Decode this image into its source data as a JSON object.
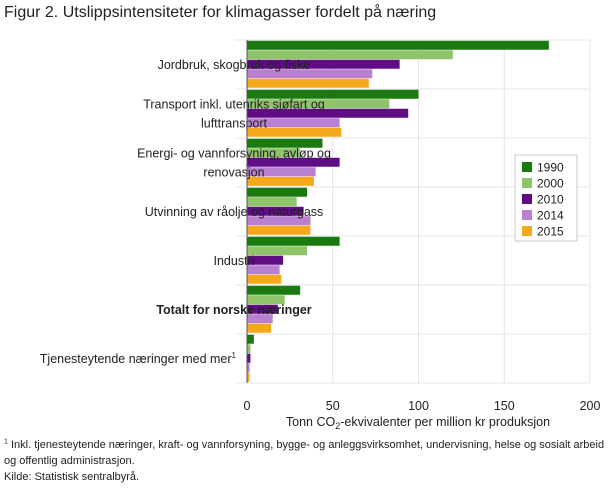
{
  "figure": {
    "title": "Figur 2. Utslippsintensiteter for klimagasser fordelt på næring",
    "footnote_marker": "1",
    "footnote": "Inkl. tjenesteytende næringer, kraft- og vannforsyning, bygge- og anleggsvirksomhet, undervisning, helse og sosialt arbeid og offentlig administrasjon.",
    "source": "Kilde: Statistisk sentralbyrå."
  },
  "chart_data": {
    "type": "bar",
    "orientation": "horizontal",
    "title": "Figur 2. Utslippsintensiteter for klimagasser fordelt på næring",
    "xlabel": "Tonn CO2-ekvivalenter  per million kr produksjon",
    "xlabel_parts": [
      "Tonn CO",
      "2",
      "-ekvivalenter  per million kr produksjon"
    ],
    "xlim": [
      0,
      200
    ],
    "xticks": [
      "0",
      "50",
      "100",
      "150",
      "200"
    ],
    "grid": true,
    "legend_position": "right",
    "categories": [
      {
        "lines": [
          "Jordbruk, skogbruk og fiske"
        ],
        "bold": false,
        "sup": ""
      },
      {
        "lines": [
          "Transport inkl. utenriks sjøfart og",
          "lufttransport"
        ],
        "bold": false,
        "sup": ""
      },
      {
        "lines": [
          "Energi- og vannforsyning, avløp og",
          "renovasjon"
        ],
        "bold": false,
        "sup": ""
      },
      {
        "lines": [
          "Utvinning av råolje og naturgass"
        ],
        "bold": false,
        "sup": ""
      },
      {
        "lines": [
          "Industri"
        ],
        "bold": false,
        "sup": ""
      },
      {
        "lines": [
          "Totalt for norske næringer"
        ],
        "bold": true,
        "sup": ""
      },
      {
        "lines": [
          "Tjenesteytende  næringer med mer"
        ],
        "bold": false,
        "sup": "1"
      }
    ],
    "series": [
      {
        "name": "1990",
        "color": "#1a7a0f",
        "values": [
          176,
          100,
          44,
          35,
          54,
          31,
          4
        ]
      },
      {
        "name": "2000",
        "color": "#90c46a",
        "values": [
          120,
          83,
          31,
          29,
          35,
          22,
          2
        ]
      },
      {
        "name": "2010",
        "color": "#600c85",
        "values": [
          89,
          94,
          54,
          33,
          21,
          18,
          2
        ]
      },
      {
        "name": "2014",
        "color": "#b97fd0",
        "values": [
          73,
          54,
          40,
          37,
          19,
          15,
          1.5
        ]
      },
      {
        "name": "2015",
        "color": "#f5a91a",
        "values": [
          71,
          55,
          39,
          37,
          20,
          14,
          1.5
        ]
      }
    ]
  }
}
